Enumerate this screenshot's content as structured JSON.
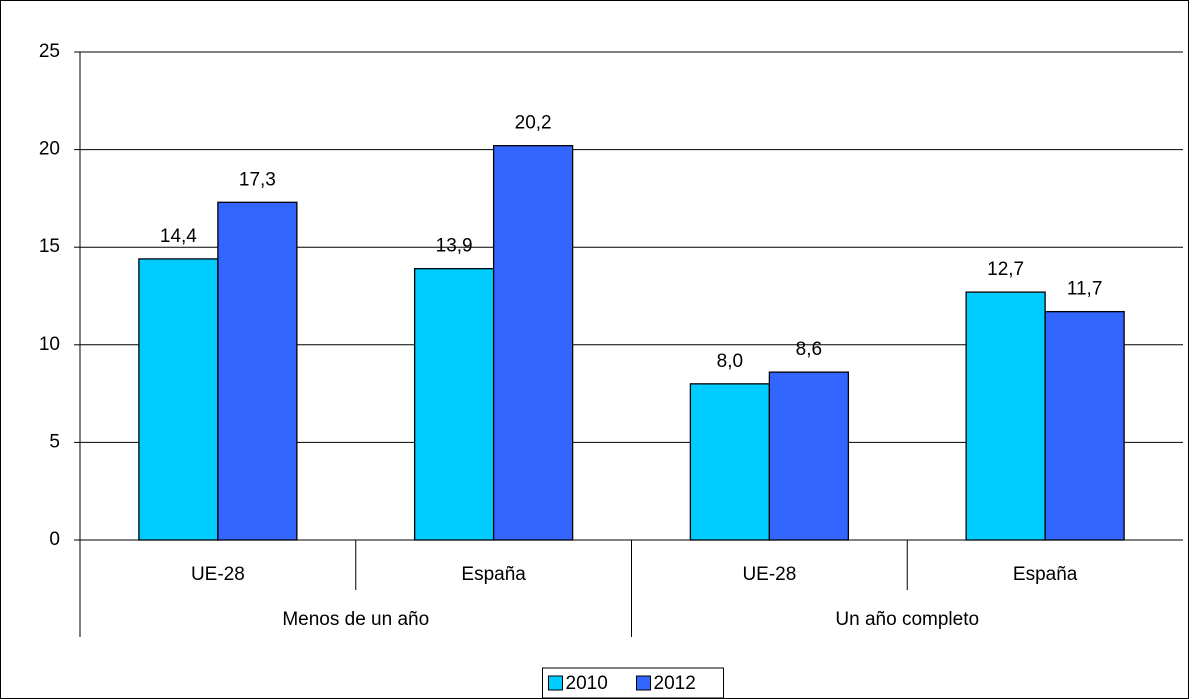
{
  "chart_data": {
    "type": "bar",
    "categories": [
      "UE-28",
      "España",
      "UE-28",
      "España"
    ],
    "category_groups": [
      "Menos de un año",
      "Un año completo"
    ],
    "series": [
      {
        "name": "2010",
        "color": "#00ccff",
        "values": [
          14.4,
          13.9,
          8.0,
          12.7
        ],
        "value_labels": [
          "14,4",
          "13,9",
          "8,0",
          "12,7"
        ]
      },
      {
        "name": "2012",
        "color": "#3366ff",
        "values": [
          17.3,
          20.2,
          8.6,
          11.7
        ],
        "value_labels": [
          "17,3",
          "20,2",
          "8,6",
          "11,7"
        ]
      }
    ],
    "ylim": [
      0,
      25
    ],
    "yticks": [
      0,
      5,
      10,
      15,
      20,
      25
    ],
    "grid": true,
    "legend": "bottom"
  }
}
